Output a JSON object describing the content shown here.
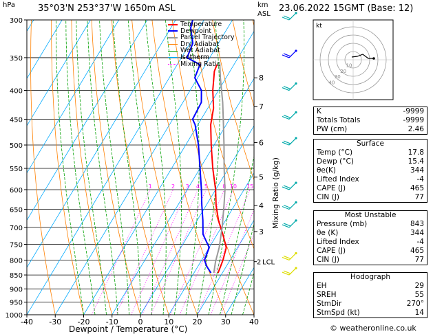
{
  "header": {
    "hpa_unit": "hPa",
    "location": "35°03'N 253°37'W 1650m ASL",
    "km_unit": "km",
    "asl_unit": "ASL",
    "datetime": "23.06.2022 15GMT (Base: 12)"
  },
  "legend": [
    {
      "label": "Temperature",
      "color": "#ff0000"
    },
    {
      "label": "Dewpoint",
      "color": "#0000ff"
    },
    {
      "label": "Parcel Trajectory",
      "color": "#999999"
    },
    {
      "label": "Dry Adiabat",
      "color": "#ff8000"
    },
    {
      "label": "Wet Adiabat",
      "color": "#00a000"
    },
    {
      "label": "Isotherm",
      "color": "#00aaff"
    },
    {
      "label": "Mixing Ratio",
      "color": "#ff00ff"
    }
  ],
  "chart_data": {
    "type": "line",
    "chart_kind": "skew-T log-P",
    "xlabel": "Dewpoint / Temperature (°C)",
    "ylabel": "",
    "ylabel_right": "Mixing Ratio (g/kg)",
    "xlim": [
      -40,
      40
    ],
    "ylim": [
      1000,
      300
    ],
    "x_ticks": [
      -40,
      -30,
      -20,
      -10,
      0,
      10,
      20,
      30,
      40
    ],
    "pressure_levels": [
      300,
      350,
      400,
      450,
      500,
      550,
      600,
      650,
      700,
      750,
      800,
      850,
      900,
      950,
      1000
    ],
    "km_ticks": [
      {
        "km": 8,
        "p": 380
      },
      {
        "km": 7,
        "p": 427
      },
      {
        "km": 6,
        "p": 495
      },
      {
        "km": 5,
        "p": 570
      },
      {
        "km": 4,
        "p": 640
      },
      {
        "km": 3,
        "p": 712
      }
    ],
    "lcl": {
      "label": "LCL",
      "km_label": "2",
      "p": 805
    },
    "mixing_ratio_labels": [
      "1",
      "2",
      "3",
      "4",
      "5",
      "8",
      "10",
      "15",
      "20",
      "25"
    ],
    "mixing_ratio_values": [
      1,
      2,
      3,
      4,
      5,
      8,
      10,
      15,
      20,
      25
    ],
    "series": [
      {
        "name": "Temperature",
        "color": "#ff0000",
        "points": [
          [
            843,
            18.5
          ],
          [
            800,
            17.5
          ],
          [
            760,
            16
          ],
          [
            720,
            12
          ],
          [
            680,
            7.5
          ],
          [
            640,
            3.5
          ],
          [
            600,
            0
          ],
          [
            550,
            -5.5
          ],
          [
            500,
            -11
          ],
          [
            460,
            -15.5
          ],
          [
            430,
            -18
          ],
          [
            400,
            -22
          ],
          [
            370,
            -25.5
          ],
          [
            360,
            -26
          ]
        ]
      },
      {
        "name": "Dewpoint",
        "color": "#0000ff",
        "points": [
          [
            843,
            16
          ],
          [
            820,
            13
          ],
          [
            800,
            11
          ],
          [
            760,
            10
          ],
          [
            720,
            5
          ],
          [
            680,
            2
          ],
          [
            640,
            -1.5
          ],
          [
            600,
            -5
          ],
          [
            550,
            -10
          ],
          [
            500,
            -15.5
          ],
          [
            460,
            -21
          ],
          [
            450,
            -23
          ],
          [
            420,
            -23.5
          ],
          [
            400,
            -26
          ],
          [
            380,
            -31
          ],
          [
            360,
            -32
          ],
          [
            350,
            -38
          ],
          [
            330,
            -39
          ],
          [
            310,
            -43
          ],
          [
            300,
            -44
          ]
        ]
      },
      {
        "name": "Parcel Trajectory",
        "color": "#999999",
        "points": [
          [
            843,
            17
          ],
          [
            805,
            15.2
          ],
          [
            760,
            13.5
          ],
          [
            700,
            10.3
          ],
          [
            640,
            6.3
          ],
          [
            600,
            3.3
          ],
          [
            550,
            -1.5
          ],
          [
            500,
            -6.5
          ],
          [
            460,
            -11
          ],
          [
            420,
            -16
          ],
          [
            380,
            -22
          ],
          [
            360,
            -25
          ]
        ]
      }
    ]
  },
  "indices": {
    "k_label": "K",
    "k_value": "-9999",
    "tt_label": "Totals Totals",
    "tt_value": "-9999",
    "pw_label": "PW (cm)",
    "pw_value": "2.46"
  },
  "surface": {
    "title": "Surface",
    "rows": [
      {
        "label": "Temp (°C)",
        "value": "17.8"
      },
      {
        "label": "Dewp (°C)",
        "value": "15.4"
      },
      {
        "label": "θe(K)",
        "value": "344"
      },
      {
        "label": "Lifted Index",
        "value": "-4"
      },
      {
        "label": "CAPE (J)",
        "value": "465"
      },
      {
        "label": "CIN (J)",
        "value": "77"
      }
    ]
  },
  "most_unstable": {
    "title": "Most Unstable",
    "rows": [
      {
        "label": "Pressure (mb)",
        "value": "843"
      },
      {
        "label": "θe (K)",
        "value": "344"
      },
      {
        "label": "Lifted Index",
        "value": "-4"
      },
      {
        "label": "CAPE (J)",
        "value": "465"
      },
      {
        "label": "CIN (J)",
        "value": "77"
      }
    ]
  },
  "hodograph_table": {
    "title": "Hodograph",
    "rows": [
      {
        "label": "EH",
        "value": "29"
      },
      {
        "label": "SREH",
        "value": "55"
      },
      {
        "label": "StmDir",
        "value": "270°"
      },
      {
        "label": "StmSpd (kt)",
        "value": "14"
      }
    ]
  },
  "hodograph": {
    "unit_label": "kt",
    "ring_labels": [
      "10",
      "20",
      "30",
      "40"
    ]
  },
  "footer": {
    "copyright": "© weatheronline.co.uk"
  }
}
